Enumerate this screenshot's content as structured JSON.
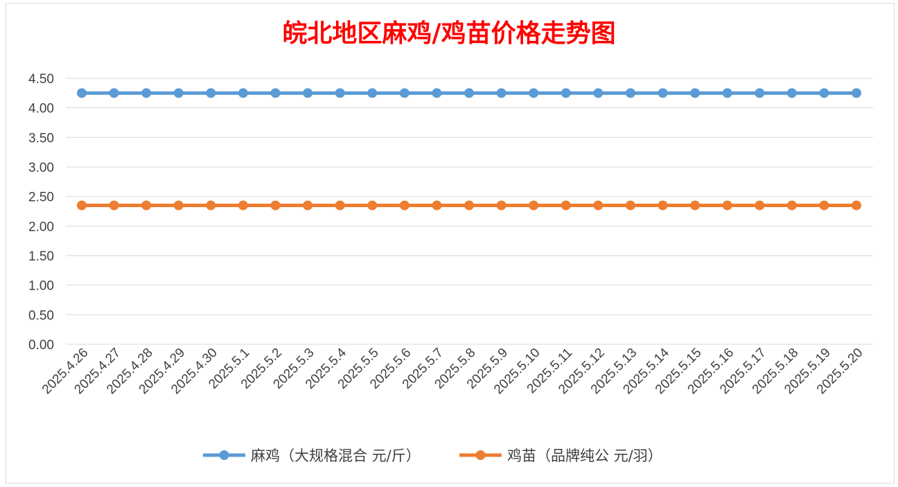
{
  "chart_data": {
    "type": "line",
    "title": "皖北地区麻鸡/鸡苗价格走势图",
    "xlabel": "",
    "ylabel": "",
    "ylim": [
      0,
      4.5
    ],
    "yticks": [
      "0.00",
      "0.50",
      "1.00",
      "1.50",
      "2.00",
      "2.50",
      "3.00",
      "3.50",
      "4.00",
      "4.50"
    ],
    "grid": true,
    "legend_position": "bottom",
    "x": [
      "2025.4.26",
      "2025.4.27",
      "2025.4.28",
      "2025.4.29",
      "2025.4.30",
      "2025.5.1",
      "2025.5.2",
      "2025.5.3",
      "2025.5.4",
      "2025.5.5",
      "2025.5.6",
      "2025.5.7",
      "2025.5.8",
      "2025.5.9",
      "2025.5.10",
      "2025.5.11",
      "2025.5.12",
      "2025.5.13",
      "2025.5.14",
      "2025.5.15",
      "2025.5.16",
      "2025.5.17",
      "2025.5.18",
      "2025.5.19",
      "2025.5.20"
    ],
    "series": [
      {
        "name": "麻鸡（大规格混合 元/斤）",
        "color": "#5b9bd5",
        "values": [
          4.25,
          4.25,
          4.25,
          4.25,
          4.25,
          4.25,
          4.25,
          4.25,
          4.25,
          4.25,
          4.25,
          4.25,
          4.25,
          4.25,
          4.25,
          4.25,
          4.25,
          4.25,
          4.25,
          4.25,
          4.25,
          4.25,
          4.25,
          4.25,
          4.25
        ]
      },
      {
        "name": "鸡苗（品牌纯公 元/羽）",
        "color": "#ed7d31",
        "values": [
          2.35,
          2.35,
          2.35,
          2.35,
          2.35,
          2.35,
          2.35,
          2.35,
          2.35,
          2.35,
          2.35,
          2.35,
          2.35,
          2.35,
          2.35,
          2.35,
          2.35,
          2.35,
          2.35,
          2.35,
          2.35,
          2.35,
          2.35,
          2.35,
          2.35
        ]
      }
    ]
  }
}
